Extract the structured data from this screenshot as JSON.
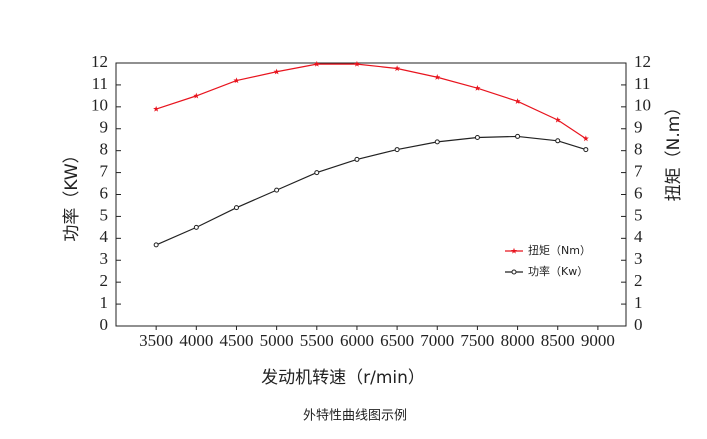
{
  "chart_data": {
    "type": "line",
    "caption": "外特性曲线图示例",
    "x_label": "发动机转速（r/min）",
    "y_label": "功率（KW）",
    "y2_label": "扭矩（N.m）",
    "x": [
      3500,
      4000,
      4500,
      5000,
      5500,
      6000,
      6500,
      7000,
      7500,
      8000,
      8500,
      8850
    ],
    "series": [
      {
        "name": "扭矩（Nm）",
        "color": "#e8141e",
        "axis": "y2",
        "marker": "star",
        "values": [
          9.9,
          10.5,
          11.2,
          11.6,
          11.95,
          11.95,
          11.75,
          11.35,
          10.85,
          10.25,
          9.4,
          8.55
        ]
      },
      {
        "name": "功率（Kw）",
        "color": "#222222",
        "axis": "y",
        "marker": "circle",
        "values": [
          3.7,
          4.5,
          5.4,
          6.2,
          7.0,
          7.6,
          8.05,
          8.4,
          8.6,
          8.65,
          8.45,
          8.05
        ]
      }
    ],
    "xlim": [
      3000,
      9350
    ],
    "xticks": [
      3500,
      4000,
      4500,
      5000,
      5500,
      6000,
      6500,
      7000,
      7500,
      8000,
      8500,
      9000
    ],
    "ylim": [
      0,
      12
    ],
    "yticks": [
      0,
      1,
      2,
      3,
      4,
      5,
      6,
      7,
      8,
      9,
      10,
      11,
      12
    ],
    "y2lim": [
      0,
      12
    ],
    "y2ticks": [
      0,
      1,
      2,
      3,
      4,
      5,
      6,
      7,
      8,
      9,
      10,
      11,
      12
    ],
    "grid": false,
    "legend": "right"
  }
}
